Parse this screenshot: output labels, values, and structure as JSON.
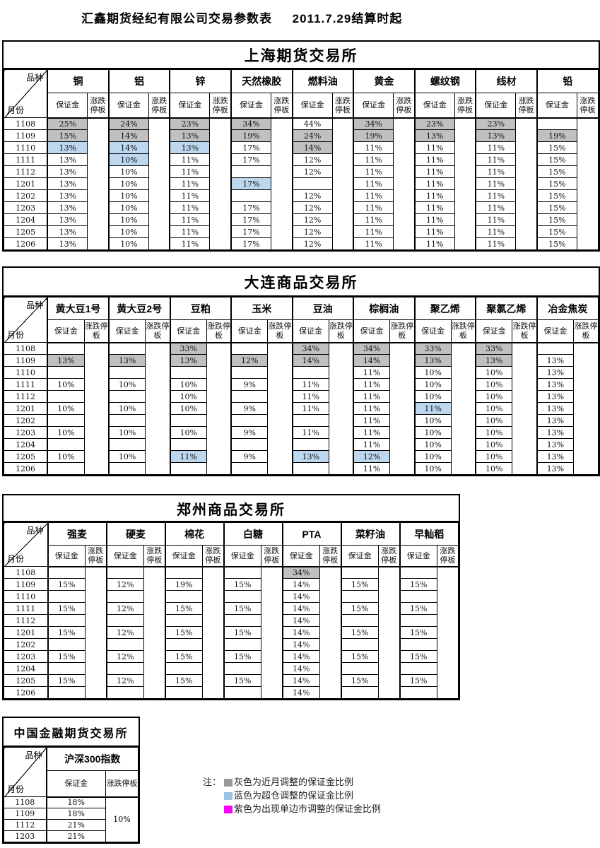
{
  "title": {
    "company": "汇鑫期货经纪有限公司交易参数表",
    "effective": "2011.7.29结算时起"
  },
  "corner": {
    "top": "品种",
    "bottom": "月份"
  },
  "colheads": {
    "margin": "保证金",
    "limit": "涨跌停板"
  },
  "cell_colors": {
    "gray": "#C0C0C0",
    "blue": "#BDD7EE",
    "magenta": "#FF00FF"
  },
  "months": [
    "1108",
    "1109",
    "1110",
    "1111",
    "1112",
    "1201",
    "1202",
    "1203",
    "1204",
    "1205",
    "1206"
  ],
  "exchanges": [
    {
      "title": "上海期货交易所",
      "commodities": [
        {
          "name": "铜",
          "margins": [
            "25%",
            "15%",
            "13%",
            "13%",
            "13%",
            "13%",
            "13%",
            "13%",
            "13%",
            "13%",
            "13%"
          ],
          "flags": [
            "g",
            "g",
            "b",
            "",
            "",
            "",
            "",
            "",
            "",
            "",
            ""
          ]
        },
        {
          "name": "铝",
          "margins": [
            "24%",
            "14%",
            "14%",
            "10%",
            "10%",
            "10%",
            "10%",
            "10%",
            "10%",
            "10%",
            "10%"
          ],
          "flags": [
            "g",
            "g",
            "b",
            "b",
            "",
            "",
            "",
            "",
            "",
            "",
            ""
          ]
        },
        {
          "name": "锌",
          "margins": [
            "23%",
            "13%",
            "13%",
            "11%",
            "11%",
            "11%",
            "11%",
            "11%",
            "11%",
            "11%",
            "11%"
          ],
          "flags": [
            "g",
            "g",
            "b",
            "",
            "",
            "",
            "",
            "",
            "",
            "",
            ""
          ]
        },
        {
          "name": "天然橡胶",
          "margins": [
            "34%",
            "19%",
            "17%",
            "17%",
            "",
            "17%",
            "",
            "17%",
            "17%",
            "17%",
            "17%"
          ],
          "flags": [
            "g",
            "g",
            "",
            "",
            "",
            "b",
            "",
            "",
            "",
            "",
            ""
          ]
        },
        {
          "name": "燃料油",
          "margins": [
            "44%",
            "24%",
            "14%",
            "12%",
            "12%",
            "",
            "12%",
            "12%",
            "12%",
            "12%",
            "12%"
          ],
          "flags": [
            "",
            "g",
            "g",
            "",
            "",
            "",
            "",
            "",
            "",
            "",
            ""
          ]
        },
        {
          "name": "黄金",
          "margins": [
            "34%",
            "19%",
            "11%",
            "11%",
            "11%",
            "11%",
            "11%",
            "11%",
            "11%",
            "11%",
            "11%"
          ],
          "flags": [
            "g",
            "g",
            "",
            "",
            "",
            "",
            "",
            "",
            "",
            "",
            ""
          ]
        },
        {
          "name": "螺纹钢",
          "margins": [
            "23%",
            "13%",
            "11%",
            "11%",
            "11%",
            "11%",
            "11%",
            "11%",
            "11%",
            "11%",
            "11%"
          ],
          "flags": [
            "g",
            "g",
            "",
            "",
            "",
            "",
            "",
            "",
            "",
            "",
            ""
          ]
        },
        {
          "name": "线材",
          "margins": [
            "23%",
            "13%",
            "11%",
            "11%",
            "11%",
            "11%",
            "11%",
            "11%",
            "11%",
            "11%",
            "11%"
          ],
          "flags": [
            "g",
            "g",
            "",
            "",
            "",
            "",
            "",
            "",
            "",
            "",
            ""
          ]
        },
        {
          "name": "铅",
          "margins": [
            "",
            "19%",
            "15%",
            "15%",
            "15%",
            "15%",
            "15%",
            "15%",
            "15%",
            "15%",
            "15%"
          ],
          "flags": [
            "",
            "g",
            "",
            "",
            "",
            "",
            "",
            "",
            "",
            "",
            ""
          ]
        }
      ]
    },
    {
      "title": "大连商品交易所",
      "commodities": [
        {
          "name": "黄大豆1号",
          "margins": [
            "",
            "13%",
            "",
            "10%",
            "",
            "10%",
            "",
            "10%",
            "",
            "10%",
            ""
          ],
          "flags": [
            "",
            "g",
            "",
            "",
            "",
            "",
            "",
            "",
            "",
            "",
            ""
          ]
        },
        {
          "name": "黄大豆2号",
          "margins": [
            "",
            "13%",
            "",
            "10%",
            "",
            "10%",
            "",
            "10%",
            "",
            "10%",
            ""
          ],
          "flags": [
            "",
            "g",
            "",
            "",
            "",
            "",
            "",
            "",
            "",
            "",
            ""
          ]
        },
        {
          "name": "豆粕",
          "margins": [
            "33%",
            "13%",
            "",
            "10%",
            "10%",
            "10%",
            "",
            "10%",
            "",
            "11%",
            ""
          ],
          "flags": [
            "g",
            "g",
            "",
            "",
            "",
            "",
            "",
            "",
            "",
            "b",
            ""
          ]
        },
        {
          "name": "玉米",
          "margins": [
            "",
            "12%",
            "",
            "9%",
            "",
            "9%",
            "",
            "9%",
            "",
            "9%",
            ""
          ],
          "flags": [
            "",
            "g",
            "",
            "",
            "",
            "",
            "",
            "",
            "",
            "",
            ""
          ]
        },
        {
          "name": "豆油",
          "margins": [
            "34%",
            "14%",
            "",
            "11%",
            "11%",
            "11%",
            "",
            "11%",
            "",
            "13%",
            ""
          ],
          "flags": [
            "g",
            "g",
            "",
            "",
            "",
            "",
            "",
            "",
            "",
            "b",
            ""
          ]
        },
        {
          "name": "棕榈油",
          "margins": [
            "34%",
            "14%",
            "11%",
            "11%",
            "11%",
            "11%",
            "11%",
            "11%",
            "11%",
            "12%",
            "11%"
          ],
          "flags": [
            "g",
            "g",
            "",
            "",
            "",
            "",
            "",
            "",
            "",
            "b",
            ""
          ]
        },
        {
          "name": "聚乙烯",
          "margins": [
            "33%",
            "13%",
            "10%",
            "10%",
            "10%",
            "11%",
            "10%",
            "10%",
            "10%",
            "10%",
            "10%"
          ],
          "flags": [
            "g",
            "g",
            "",
            "",
            "",
            "b",
            "",
            "",
            "",
            "",
            ""
          ]
        },
        {
          "name": "聚氯乙烯",
          "margins": [
            "33%",
            "13%",
            "10%",
            "10%",
            "10%",
            "10%",
            "10%",
            "10%",
            "10%",
            "10%",
            "10%"
          ],
          "flags": [
            "g",
            "g",
            "",
            "",
            "",
            "",
            "",
            "",
            "",
            "",
            ""
          ]
        },
        {
          "name": "冶金焦炭",
          "margins": [
            "",
            "13%",
            "13%",
            "13%",
            "13%",
            "13%",
            "13%",
            "13%",
            "13%",
            "13%",
            "13%"
          ],
          "flags": [
            "",
            "",
            "",
            "",
            "",
            "",
            "",
            "",
            "",
            "",
            ""
          ]
        }
      ]
    },
    {
      "title": "郑州商品交易所",
      "commodities": [
        {
          "name": "强麦",
          "margins": [
            "",
            "15%",
            "",
            "15%",
            "",
            "15%",
            "",
            "15%",
            "",
            "15%",
            ""
          ],
          "flags": [
            "",
            "",
            "",
            "",
            "",
            "",
            "",
            "",
            "",
            "",
            ""
          ]
        },
        {
          "name": "硬麦",
          "margins": [
            "",
            "12%",
            "",
            "12%",
            "",
            "12%",
            "",
            "12%",
            "",
            "12%",
            ""
          ],
          "flags": [
            "",
            "",
            "",
            "",
            "",
            "",
            "",
            "",
            "",
            "",
            ""
          ]
        },
        {
          "name": "棉花",
          "margins": [
            "",
            "19%",
            "",
            "15%",
            "",
            "15%",
            "",
            "15%",
            "",
            "15%",
            ""
          ],
          "flags": [
            "",
            "",
            "",
            "",
            "",
            "",
            "",
            "",
            "",
            "",
            ""
          ]
        },
        {
          "name": "白糖",
          "margins": [
            "",
            "15%",
            "",
            "15%",
            "",
            "15%",
            "",
            "15%",
            "",
            "15%",
            ""
          ],
          "flags": [
            "",
            "",
            "",
            "",
            "",
            "",
            "",
            "",
            "",
            "",
            ""
          ]
        },
        {
          "name": "PTA",
          "margins": [
            "34%",
            "14%",
            "14%",
            "14%",
            "14%",
            "14%",
            "14%",
            "14%",
            "14%",
            "14%",
            "14%"
          ],
          "flags": [
            "g",
            "",
            "",
            "",
            "",
            "",
            "",
            "",
            "",
            "",
            ""
          ]
        },
        {
          "name": "菜籽油",
          "margins": [
            "",
            "15%",
            "",
            "15%",
            "",
            "15%",
            "",
            "15%",
            "",
            "15%",
            ""
          ],
          "flags": [
            "",
            "",
            "",
            "",
            "",
            "",
            "",
            "",
            "",
            "",
            ""
          ]
        },
        {
          "name": "早籼稻",
          "margins": [
            "",
            "15%",
            "",
            "15%",
            "",
            "15%",
            "",
            "15%",
            "",
            "15%",
            ""
          ],
          "flags": [
            "",
            "",
            "",
            "",
            "",
            "",
            "",
            "",
            "",
            "",
            ""
          ]
        }
      ]
    }
  ],
  "cffex": {
    "title": "中国金融期货交易所",
    "commodity": "沪深300指数",
    "months": [
      "1108",
      "1109",
      "1112",
      "1203"
    ],
    "margins": [
      "18%",
      "18%",
      "21%",
      "21%"
    ],
    "flags": [
      "",
      "",
      "",
      ""
    ],
    "limit": "10%"
  },
  "legend": {
    "label": "注：",
    "items": [
      {
        "color": "#999999",
        "text": "灰色为近月调整的保证金比例"
      },
      {
        "color": "#9DC3E6",
        "text": "蓝色为超仓调整的保证金比例"
      },
      {
        "color": "#FF00FF",
        "text": "紫色为出现单边市调整的保证金比例"
      }
    ]
  }
}
